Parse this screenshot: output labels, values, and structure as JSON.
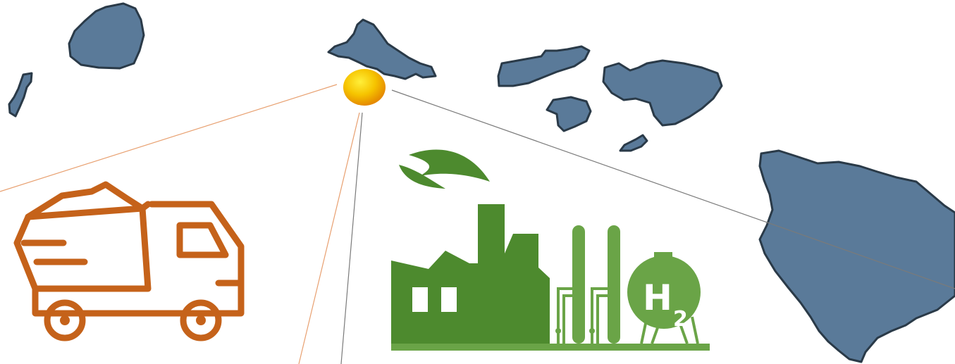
{
  "graphic": {
    "hydrogen_symbol": "H",
    "hydrogen_subscript": "2"
  },
  "colors": {
    "island_fill": "#5a7a99",
    "island_outline": "#2a3a48",
    "truck": "#c5621a",
    "factory": "#4d8a2e",
    "plant": "#6aa447",
    "location_marker": "#f2b200",
    "line_orange": "#e8a070",
    "line_gray": "#7a7a7a"
  },
  "icons": [
    "island-map",
    "location-marker-icon",
    "dump-truck-icon",
    "green-factory-icon",
    "hydrogen-plant-icon",
    "leaf-icon"
  ]
}
